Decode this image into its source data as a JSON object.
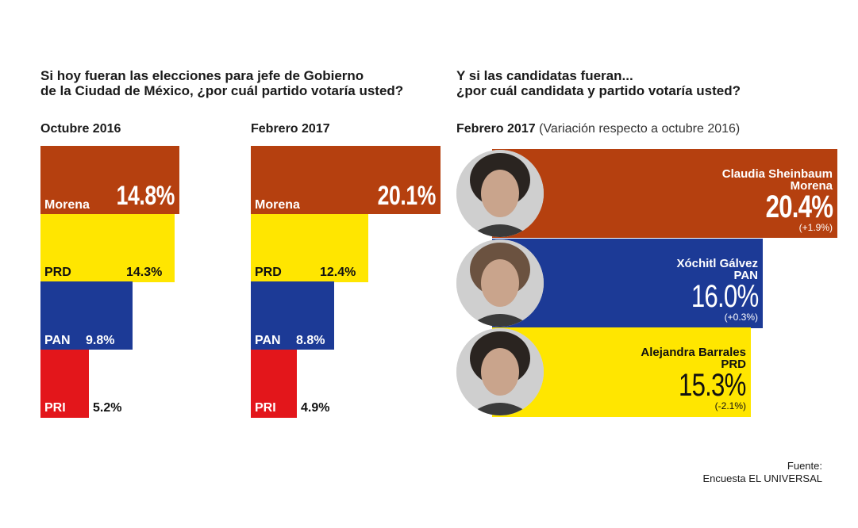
{
  "left_question": {
    "line1": "Si hoy fueran las elecciones para jefe de Gobierno",
    "line2": "de la Ciudad de México, ¿por cuál partido votaría usted?"
  },
  "right_question": {
    "line1": "Y si las candidatas fueran...",
    "line2": "¿por cuál candidata y partido votaría usted?"
  },
  "colors": {
    "Morena": "#b5400f",
    "PRD": "#ffe600",
    "PAN": "#1c3a96",
    "PRI": "#e3161b"
  },
  "chart_data": [
    {
      "type": "bar",
      "title": "Octubre 2016",
      "categories": [
        "Morena",
        "PRD",
        "PAN",
        "PRI"
      ],
      "values": [
        14.8,
        14.3,
        9.8,
        5.2
      ],
      "value_labels": [
        "14.8%",
        "14.3%",
        "9.8%",
        "5.2%"
      ]
    },
    {
      "type": "bar",
      "title": "Febrero 2017",
      "categories": [
        "Morena",
        "PRD",
        "PAN",
        "PRI"
      ],
      "values": [
        20.1,
        12.4,
        8.8,
        4.9
      ],
      "value_labels": [
        "20.1%",
        "12.4%",
        "8.8%",
        "4.9%"
      ]
    },
    {
      "type": "bar",
      "title": "Febrero 2017",
      "note": "(Variación respecto a octubre 2016)",
      "categories": [
        "Claudia Sheinbaum",
        "Xóchitl Gálvez",
        "Alejandra Barrales"
      ],
      "parties": [
        "Morena",
        "PAN",
        "PRD"
      ],
      "values": [
        20.4,
        16.0,
        15.3
      ],
      "value_labels": [
        "20.4%",
        "16.0%",
        "15.3%"
      ],
      "variation": [
        "(+1.9%)",
        "(+0.3%)",
        "(-2.1%)"
      ]
    }
  ],
  "source": {
    "line1": "Fuente:",
    "line2": "Encuesta EL UNIVERSAL"
  }
}
